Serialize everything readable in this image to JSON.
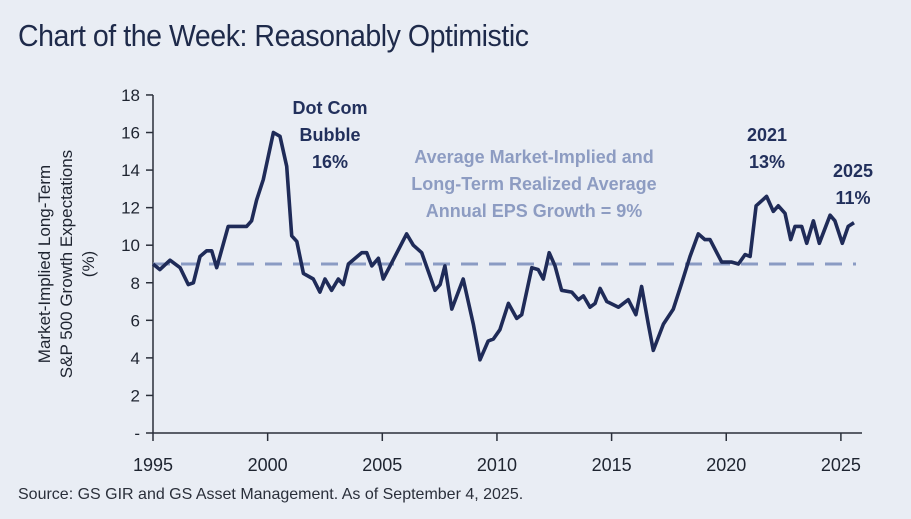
{
  "title": "Chart of the Week: Reasonably Optimistic",
  "source": "Source: GS GIR and GS Asset Management. As of September 4, 2025.",
  "chart_data": {
    "type": "line",
    "title": "Chart of the Week: Reasonably Optimistic",
    "ylabel": [
      "Market-Implied Long-Term",
      "S&P 500 Growth Expectations",
      "(%)"
    ],
    "xlabel": "",
    "xlim": [
      1995,
      2025.8
    ],
    "ylim": [
      0,
      18
    ],
    "xticks": [
      1995,
      2000,
      2005,
      2010,
      2015,
      2020,
      2025
    ],
    "yticks": [
      0,
      2,
      4,
      6,
      8,
      10,
      12,
      14,
      16,
      18
    ],
    "ytick_labels": [
      "-",
      "2",
      "4",
      "6",
      "8",
      "10",
      "12",
      "14",
      "16",
      "18"
    ],
    "grid": false,
    "colors": {
      "line": "#1f2b58",
      "average": "#8a9bc3",
      "axis": "#2a2f3a"
    },
    "series": [
      {
        "name": "Market-Implied Long-Term S&P 500 Growth Expectations",
        "x": [
          1995.0,
          1995.3,
          1995.74,
          1996.18,
          1996.54,
          1996.76,
          1997.05,
          1997.34,
          1997.56,
          1997.78,
          1998.28,
          1999.08,
          1999.3,
          1999.52,
          1999.81,
          2000.25,
          2000.54,
          2000.83,
          2001.05,
          2001.27,
          2001.56,
          2001.99,
          2002.28,
          2002.5,
          2002.79,
          2003.08,
          2003.3,
          2003.52,
          2004.1,
          2004.32,
          2004.54,
          2004.83,
          2005.04,
          2005.34,
          2006.06,
          2006.35,
          2006.72,
          2007.3,
          2007.52,
          2007.73,
          2008.03,
          2008.53,
          2008.97,
          2009.26,
          2009.62,
          2009.84,
          2010.13,
          2010.5,
          2010.86,
          2011.08,
          2011.52,
          2011.8,
          2012.02,
          2012.28,
          2012.53,
          2012.82,
          2013.26,
          2013.55,
          2013.77,
          2014.06,
          2014.28,
          2014.5,
          2014.79,
          2015.3,
          2015.73,
          2016.06,
          2016.31,
          2016.6,
          2016.82,
          2017.26,
          2017.69,
          2018.06,
          2018.42,
          2018.78,
          2019.07,
          2019.29,
          2019.8,
          2020.24,
          2020.53,
          2020.82,
          2021.04,
          2021.3,
          2021.76,
          2022.05,
          2022.27,
          2022.56,
          2022.81,
          2023.0,
          2023.29,
          2023.51,
          2023.8,
          2024.06,
          2024.53,
          2024.74,
          2025.06,
          2025.32,
          2025.57
        ],
        "values": [
          9.0,
          8.7,
          9.2,
          8.8,
          7.9,
          8.0,
          9.4,
          9.7,
          9.7,
          8.8,
          11.0,
          11.0,
          11.3,
          12.4,
          13.5,
          16.0,
          15.8,
          14.2,
          10.5,
          10.2,
          8.5,
          8.2,
          7.5,
          8.2,
          7.6,
          8.2,
          7.9,
          9.0,
          9.6,
          9.6,
          8.9,
          9.3,
          8.2,
          8.9,
          10.6,
          10.0,
          9.6,
          7.6,
          7.9,
          8.9,
          6.6,
          8.2,
          5.8,
          3.9,
          4.9,
          5.0,
          5.5,
          6.9,
          6.1,
          6.3,
          8.8,
          8.7,
          8.2,
          9.6,
          8.9,
          7.6,
          7.5,
          7.1,
          7.3,
          6.7,
          6.9,
          7.7,
          7.0,
          6.7,
          7.1,
          6.3,
          7.8,
          5.8,
          4.4,
          5.8,
          6.6,
          8.0,
          9.4,
          10.6,
          10.3,
          10.3,
          9.1,
          9.1,
          9.0,
          9.5,
          9.4,
          12.1,
          12.6,
          11.8,
          12.1,
          11.7,
          10.3,
          11.0,
          11.0,
          10.1,
          11.3,
          10.1,
          11.6,
          11.3,
          10.1,
          11.0,
          11.2
        ]
      }
    ],
    "average": {
      "value": 9,
      "label": [
        "Average Market-Implied and",
        "Long-Term Realized Average",
        "Annual EPS Growth = 9%"
      ]
    },
    "annotations": [
      {
        "lines": [
          "Dot Com",
          "Bubble",
          "16%"
        ]
      },
      {
        "lines": [
          "2021",
          "13%"
        ]
      },
      {
        "lines": [
          "2025",
          "11%"
        ]
      }
    ]
  }
}
